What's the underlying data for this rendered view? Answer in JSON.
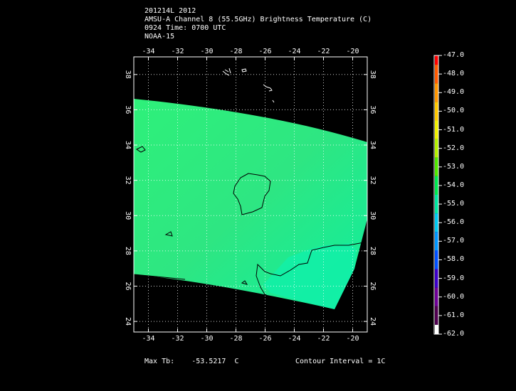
{
  "header": {
    "line1": "201214L 2012",
    "line2": "AMSU-A Channel 8 (55.5GHz) Brightness Temperature (C)",
    "line3": "0924 Time: 0700 UTC",
    "line4": "NOAA-15"
  },
  "axes": {
    "lon_labels": [
      "-34",
      "-32",
      "-30",
      "-28",
      "-26",
      "-24",
      "-22",
      "-20"
    ],
    "lat_labels": [
      "38",
      "36",
      "34",
      "32",
      "30",
      "28",
      "26",
      "24"
    ],
    "lon_range": [
      -35,
      -19
    ],
    "lat_range": [
      23.4,
      39
    ]
  },
  "colorbar": {
    "labels": [
      "-47.0",
      "-48.0",
      "-49.0",
      "-50.0",
      "-51.0",
      "-52.0",
      "-53.0",
      "-54.0",
      "-55.0",
      "-56.0",
      "-57.0",
      "-58.0",
      "-59.0",
      "-60.0",
      "-61.0",
      "-62.0"
    ],
    "colors": [
      "#ff0000",
      "#ff5a00",
      "#ff9600",
      "#ffc800",
      "#f0f000",
      "#b4f000",
      "#50e600",
      "#00e650",
      "#00e6a0",
      "#00c8f0",
      "#0096ff",
      "#0050ff",
      "#3c00c8",
      "#6e0096",
      "#500050",
      "#ffffff"
    ]
  },
  "footer": {
    "max_tb_label": "Max Tb:",
    "max_tb_value": "-53.5217",
    "max_tb_unit": "C",
    "contour_interval": "Contour Interval = 1C"
  }
}
